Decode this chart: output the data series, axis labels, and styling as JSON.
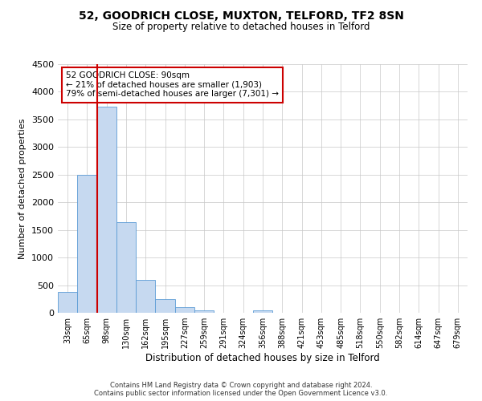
{
  "title": "52, GOODRICH CLOSE, MUXTON, TELFORD, TF2 8SN",
  "subtitle": "Size of property relative to detached houses in Telford",
  "xlabel": "Distribution of detached houses by size in Telford",
  "ylabel": "Number of detached properties",
  "categories": [
    "33sqm",
    "65sqm",
    "98sqm",
    "130sqm",
    "162sqm",
    "195sqm",
    "227sqm",
    "259sqm",
    "291sqm",
    "324sqm",
    "356sqm",
    "388sqm",
    "421sqm",
    "453sqm",
    "485sqm",
    "518sqm",
    "550sqm",
    "582sqm",
    "614sqm",
    "647sqm",
    "679sqm"
  ],
  "values": [
    380,
    2500,
    3730,
    1640,
    600,
    240,
    95,
    50,
    0,
    0,
    50,
    0,
    0,
    0,
    0,
    0,
    0,
    0,
    0,
    0,
    0
  ],
  "bar_color": "#c6d9f0",
  "bar_edge_color": "#5b9bd5",
  "property_line_idx": 2,
  "property_line_color": "#cc0000",
  "ylim": [
    0,
    4500
  ],
  "yticks": [
    0,
    500,
    1000,
    1500,
    2000,
    2500,
    3000,
    3500,
    4000,
    4500
  ],
  "annotation_title": "52 GOODRICH CLOSE: 90sqm",
  "annotation_line1": "← 21% of detached houses are smaller (1,903)",
  "annotation_line2": "79% of semi-detached houses are larger (7,301) →",
  "annotation_box_color": "#cc0000",
  "footer_line1": "Contains HM Land Registry data © Crown copyright and database right 2024.",
  "footer_line2": "Contains public sector information licensed under the Open Government Licence v3.0.",
  "background_color": "#ffffff",
  "grid_color": "#c8c8c8"
}
